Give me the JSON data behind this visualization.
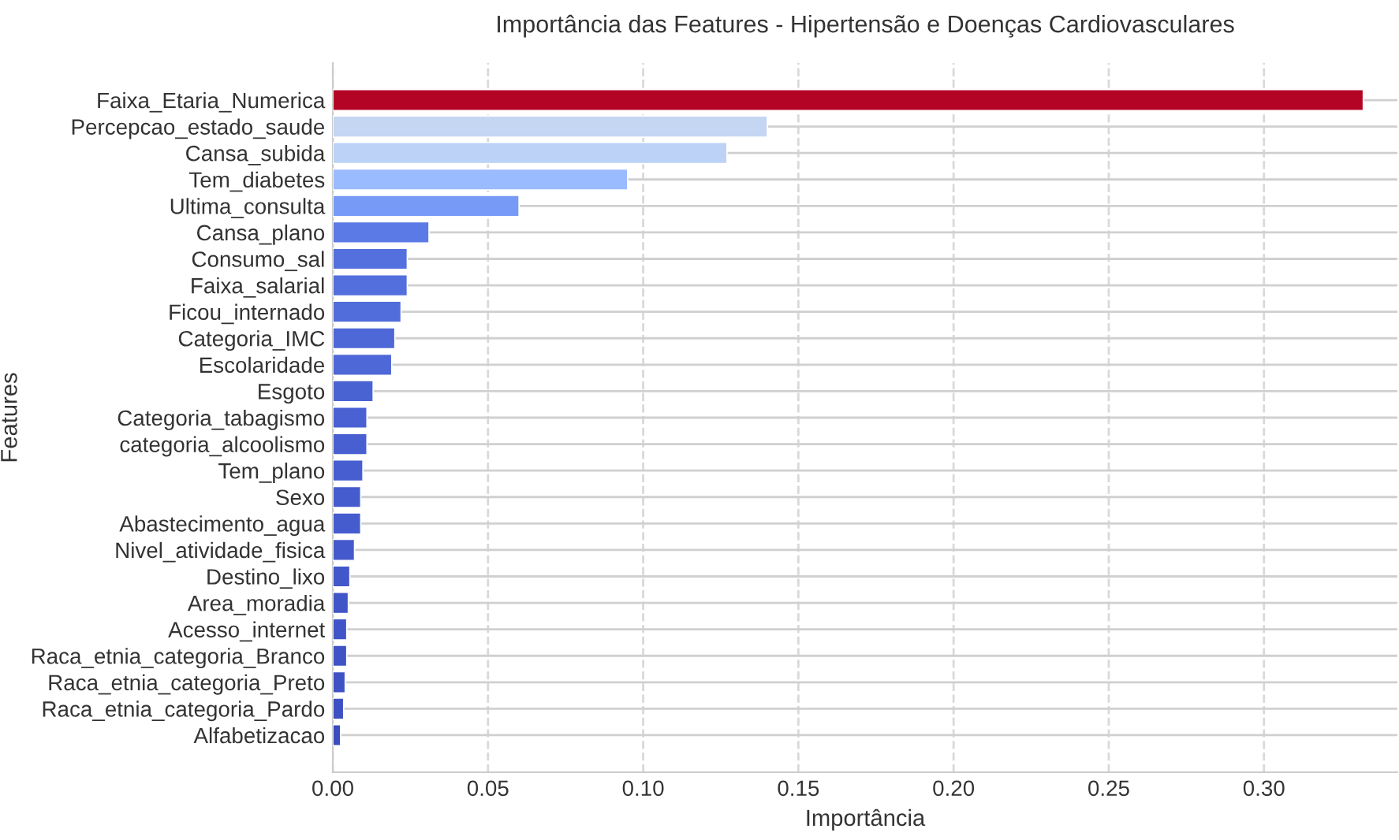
{
  "chart_data": {
    "type": "bar",
    "orientation": "horizontal",
    "title": "Importância das Features - Hipertensão e Doenças Cardiovasculares",
    "xlabel": "Importância",
    "ylabel": "Features",
    "categories": [
      "Faixa_Etaria_Numerica",
      "Percepcao_estado_saude",
      "Cansa_subida",
      "Tem_diabetes",
      "Ultima_consulta",
      "Cansa_plano",
      "Consumo_sal",
      "Faixa_salarial",
      "Ficou_internado",
      "Categoria_IMC",
      "Escolaridade",
      "Esgoto",
      "Categoria_tabagismo",
      "categoria_alcoolismo",
      "Tem_plano",
      "Sexo",
      "Abastecimento_agua",
      "Nivel_atividade_fisica",
      "Destino_lixo",
      "Area_moradia",
      "Acesso_internet",
      "Raca_etnia_categoria_Branco",
      "Raca_etnia_categoria_Preto",
      "Raca_etnia_categoria_Pardo",
      "Alfabetizacao"
    ],
    "values": [
      0.332,
      0.14,
      0.127,
      0.095,
      0.06,
      0.031,
      0.024,
      0.024,
      0.022,
      0.02,
      0.019,
      0.013,
      0.011,
      0.011,
      0.0097,
      0.009,
      0.009,
      0.007,
      0.0055,
      0.005,
      0.0045,
      0.0045,
      0.004,
      0.0035,
      0.0025
    ],
    "colors": [
      "#b40426",
      "#c5d6f2",
      "#bcd2f7",
      "#9abbff",
      "#779af7",
      "#5b7ae5",
      "#5470de",
      "#536edd",
      "#516ddb",
      "#4e68d8",
      "#4e68d8",
      "#4a63d3",
      "#4961d2",
      "#485fd1",
      "#465ecf",
      "#455cce",
      "#455cce",
      "#445acc",
      "#4257c9",
      "#4055c8",
      "#4055c8",
      "#3f53c6",
      "#3e51c5",
      "#3d50c3",
      "#3b4cc0"
    ],
    "xlim": [
      0,
      0.343
    ],
    "xticks": [
      {
        "value": 0,
        "label": "0.00"
      },
      {
        "value": 0.05,
        "label": "0.05"
      },
      {
        "value": 0.1,
        "label": "0.10"
      },
      {
        "value": 0.15,
        "label": "0.15"
      },
      {
        "value": 0.2,
        "label": "0.20"
      },
      {
        "value": 0.25,
        "label": "0.25"
      },
      {
        "value": 0.3,
        "label": "0.30"
      }
    ],
    "grid": true
  }
}
